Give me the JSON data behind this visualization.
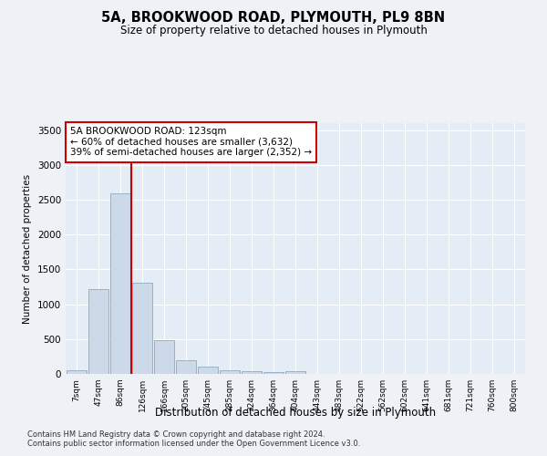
{
  "title": "5A, BROOKWOOD ROAD, PLYMOUTH, PL9 8BN",
  "subtitle": "Size of property relative to detached houses in Plymouth",
  "xlabel": "Distribution of detached houses by size in Plymouth",
  "ylabel": "Number of detached properties",
  "footnote1": "Contains HM Land Registry data © Crown copyright and database right 2024.",
  "footnote2": "Contains public sector information licensed under the Open Government Licence v3.0.",
  "annotation_line1": "5A BROOKWOOD ROAD: 123sqm",
  "annotation_line2": "← 60% of detached houses are smaller (3,632)",
  "annotation_line3": "39% of semi-detached houses are larger (2,352) →",
  "bar_color": "#ccd9e8",
  "bar_edge_color": "#9ab0c8",
  "vline_color": "#cc0000",
  "annotation_box_edgecolor": "#cc0000",
  "bins": [
    "7sqm",
    "47sqm",
    "86sqm",
    "126sqm",
    "166sqm",
    "205sqm",
    "245sqm",
    "285sqm",
    "324sqm",
    "364sqm",
    "404sqm",
    "443sqm",
    "483sqm",
    "522sqm",
    "562sqm",
    "602sqm",
    "641sqm",
    "681sqm",
    "721sqm",
    "760sqm",
    "800sqm"
  ],
  "values": [
    50,
    1220,
    2590,
    1310,
    480,
    200,
    100,
    50,
    35,
    20,
    40,
    5,
    3,
    2,
    2,
    1,
    1,
    1,
    1,
    1,
    0
  ],
  "ylim": [
    0,
    3600
  ],
  "yticks": [
    0,
    500,
    1000,
    1500,
    2000,
    2500,
    3000,
    3500
  ],
  "vline_bin_index": 2.5,
  "background_color": "#eef2f7",
  "plot_bg_color": "#e4ecf5"
}
